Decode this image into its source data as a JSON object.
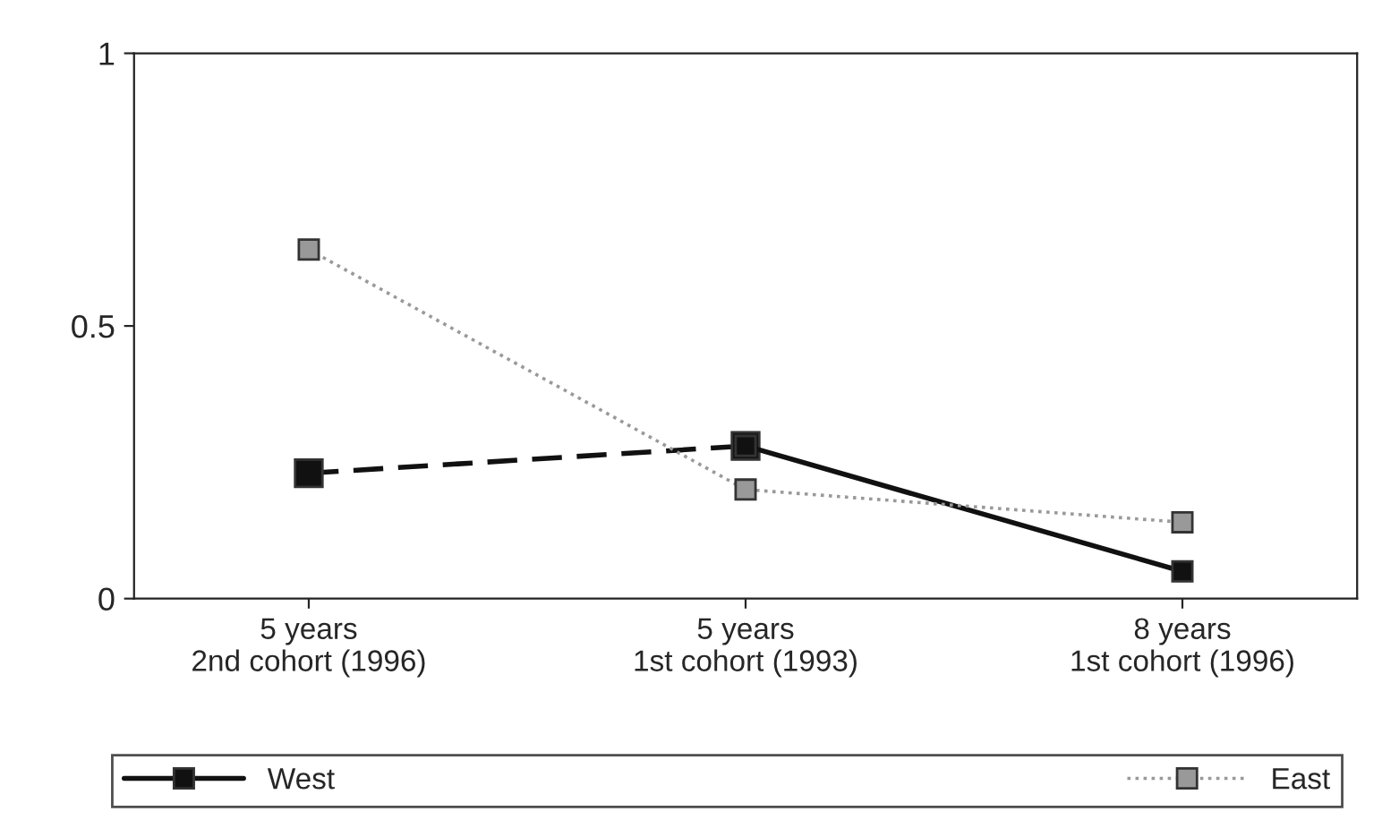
{
  "chart_data": {
    "type": "line",
    "categories": [
      "5 years\n2nd cohort (1996)",
      "5 years\n1st cohort (1993)",
      "8 years\n1st cohort (1996)"
    ],
    "ylim": [
      0,
      1
    ],
    "yticks": [
      0,
      0.5,
      1
    ],
    "series": [
      {
        "color": "#111111",
        "values": [
          0.23,
          0.28,
          null
        ],
        "line_style": "dashed",
        "marker": "square"
      },
      {
        "name": "West",
        "color": "#111111",
        "values": [
          null,
          0.28,
          0.05
        ],
        "line_style": "solid",
        "marker": "square"
      },
      {
        "name": "East",
        "color": "#999999",
        "values": [
          0.64,
          0.2,
          0.14
        ],
        "line_style": "dotted",
        "marker": "square"
      }
    ],
    "grid": false,
    "legend": "bottom"
  }
}
